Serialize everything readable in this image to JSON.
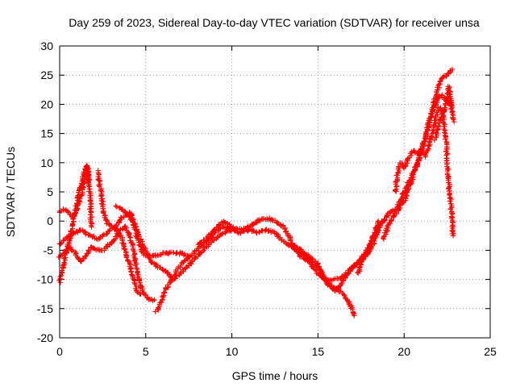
{
  "chart_data": {
    "type": "scatter",
    "title": "Day 259 of 2023, Sidereal Day-to-day VTEC variation (SDTVAR) for receiver unsa",
    "xlabel": "GPS time / hours",
    "ylabel": "SDTVAR / TECUs",
    "xlim": [
      0,
      25
    ],
    "ylim": [
      -20,
      30
    ],
    "xticks": [
      0,
      5,
      10,
      15,
      20,
      25
    ],
    "yticks": [
      -20,
      -15,
      -10,
      -5,
      0,
      5,
      10,
      15,
      20,
      25,
      30
    ],
    "grid": true,
    "marker": "+",
    "color": "#ff0000",
    "series": [
      {
        "name": "arc-1",
        "points": [
          [
            0.0,
            1.5
          ],
          [
            0.2,
            2.0
          ],
          [
            0.5,
            1.5
          ],
          [
            0.8,
            0.5
          ],
          [
            1.0,
            2.0
          ],
          [
            1.3,
            5.0
          ],
          [
            1.5,
            7.5
          ],
          [
            1.6,
            9.5
          ],
          [
            1.7,
            8.0
          ],
          [
            1.75,
            5.0
          ],
          [
            1.8,
            2.0
          ],
          [
            1.85,
            -1.0
          ]
        ]
      },
      {
        "name": "arc-2",
        "points": [
          [
            0.0,
            -10.5
          ],
          [
            0.2,
            -8.0
          ],
          [
            0.4,
            -5.0
          ],
          [
            0.6,
            -3.0
          ],
          [
            0.8,
            0.0
          ],
          [
            1.0,
            3.0
          ],
          [
            1.2,
            5.5
          ],
          [
            1.4,
            8.0
          ],
          [
            1.6,
            9.5
          ],
          [
            1.7,
            6.0
          ]
        ]
      },
      {
        "name": "arc-3",
        "points": [
          [
            0.0,
            -6.0
          ],
          [
            0.3,
            -5.5
          ],
          [
            0.6,
            -4.5
          ],
          [
            0.9,
            -5.5
          ],
          [
            1.2,
            -7.0
          ],
          [
            1.5,
            -6.0
          ],
          [
            1.8,
            -4.5
          ],
          [
            2.2,
            -5.0
          ],
          [
            2.5,
            -5.0
          ],
          [
            2.9,
            -4.0
          ],
          [
            3.2,
            -3.0
          ],
          [
            3.5,
            -1.5
          ],
          [
            3.8,
            -1.0
          ],
          [
            4.0,
            -2.0
          ],
          [
            4.3,
            -5.0
          ],
          [
            4.5,
            -9.0
          ],
          [
            4.8,
            -12.0
          ],
          [
            5.2,
            -13.5
          ],
          [
            5.5,
            -13.5
          ]
        ]
      },
      {
        "name": "arc-4",
        "points": [
          [
            0.0,
            -4.0
          ],
          [
            0.3,
            -3.0
          ],
          [
            0.6,
            -2.5
          ],
          [
            0.9,
            -2.0
          ],
          [
            1.2,
            -1.5
          ],
          [
            1.5,
            -2.0
          ],
          [
            1.8,
            -2.5
          ],
          [
            2.2,
            -3.0
          ],
          [
            2.5,
            -2.5
          ],
          [
            2.8,
            -2.0
          ],
          [
            3.2,
            -1.0
          ],
          [
            3.6,
            0.5
          ],
          [
            3.9,
            1.2
          ],
          [
            4.1,
            1.5
          ],
          [
            4.3,
            0.0
          ],
          [
            4.5,
            -3.0
          ],
          [
            4.8,
            -5.5
          ],
          [
            5.1,
            -6.0
          ],
          [
            5.5,
            -6.0
          ],
          [
            6.0,
            -5.5
          ],
          [
            6.5,
            -5.5
          ],
          [
            7.0,
            -5.5
          ],
          [
            7.5,
            -6.0
          ]
        ]
      },
      {
        "name": "arc-5",
        "points": [
          [
            2.2,
            8.5
          ],
          [
            2.4,
            5.0
          ],
          [
            2.6,
            1.0
          ],
          [
            2.8,
            -0.5
          ],
          [
            3.1,
            -1.0
          ],
          [
            3.3,
            -1.5
          ],
          [
            3.6,
            -3.0
          ],
          [
            3.9,
            -6.0
          ],
          [
            4.2,
            -9.0
          ],
          [
            4.5,
            -12.0
          ],
          [
            4.7,
            -12.5
          ]
        ]
      },
      {
        "name": "arc-6",
        "points": [
          [
            3.3,
            2.5
          ],
          [
            3.6,
            2.0
          ],
          [
            4.0,
            1.0
          ],
          [
            4.3,
            -0.5
          ],
          [
            4.6,
            -2.5
          ],
          [
            5.0,
            -5.0
          ],
          [
            5.3,
            -7.0
          ],
          [
            5.8,
            -8.0
          ],
          [
            6.3,
            -9.0
          ],
          [
            6.6,
            -10.0
          ],
          [
            7.0,
            -9.0
          ],
          [
            7.5,
            -7.5
          ],
          [
            8.0,
            -6.0
          ],
          [
            8.5,
            -4.5
          ],
          [
            9.0,
            -3.0
          ],
          [
            9.5,
            -2.0
          ],
          [
            10.0,
            -1.5
          ]
        ]
      },
      {
        "name": "arc-7",
        "points": [
          [
            5.6,
            -15.5
          ],
          [
            5.8,
            -14.5
          ],
          [
            6.0,
            -13.0
          ],
          [
            6.2,
            -11.5
          ],
          [
            6.5,
            -10.0
          ],
          [
            6.8,
            -8.5
          ],
          [
            7.2,
            -7.0
          ],
          [
            7.6,
            -6.0
          ],
          [
            8.0,
            -5.0
          ],
          [
            8.5,
            -3.5
          ],
          [
            9.0,
            -2.0
          ],
          [
            9.5,
            -1.0
          ],
          [
            10.0,
            -1.5
          ],
          [
            10.5,
            -2.0
          ],
          [
            11.0,
            -1.5
          ],
          [
            11.5,
            -2.0
          ],
          [
            12.0,
            -1.5
          ],
          [
            12.5,
            -2.0
          ],
          [
            13.0,
            -3.5
          ],
          [
            13.5,
            -4.5
          ],
          [
            14.0,
            -5.5
          ],
          [
            14.5,
            -6.5
          ],
          [
            15.0,
            -8.0
          ],
          [
            15.5,
            -10.5
          ],
          [
            16.0,
            -11.5
          ],
          [
            16.5,
            -12.5
          ],
          [
            17.0,
            -15.0
          ],
          [
            17.1,
            -16.2
          ]
        ]
      },
      {
        "name": "arc-8",
        "points": [
          [
            8.0,
            -4.0
          ],
          [
            8.5,
            -3.0
          ],
          [
            9.0,
            -1.5
          ],
          [
            9.5,
            0.0
          ],
          [
            10.0,
            -1.0
          ],
          [
            10.5,
            -1.5
          ],
          [
            11.0,
            -1.0
          ],
          [
            11.5,
            0.0
          ],
          [
            12.0,
            0.5
          ],
          [
            12.5,
            0.0
          ],
          [
            13.0,
            -1.0
          ],
          [
            13.3,
            -2.5
          ],
          [
            13.6,
            -4.5
          ],
          [
            14.0,
            -6.0
          ],
          [
            14.5,
            -7.0
          ],
          [
            15.0,
            -9.0
          ],
          [
            15.5,
            -10.0
          ],
          [
            16.0,
            -10.0
          ],
          [
            16.5,
            -9.5
          ],
          [
            17.0,
            -8.0
          ],
          [
            17.5,
            -6.5
          ],
          [
            18.0,
            -4.5
          ],
          [
            18.3,
            -2.0
          ],
          [
            18.5,
            0.0
          ]
        ]
      },
      {
        "name": "arc-9",
        "points": [
          [
            13.5,
            -4.0
          ],
          [
            14.0,
            -5.0
          ],
          [
            14.5,
            -6.0
          ],
          [
            15.0,
            -7.5
          ],
          [
            15.3,
            -9.5
          ],
          [
            15.6,
            -11.0
          ],
          [
            16.0,
            -12.0
          ],
          [
            16.3,
            -11.0
          ],
          [
            16.6,
            -9.5
          ],
          [
            17.0,
            -8.0
          ],
          [
            17.3,
            -7.0
          ],
          [
            17.7,
            -6.0
          ],
          [
            18.0,
            -5.0
          ],
          [
            18.3,
            -3.5
          ],
          [
            18.5,
            -1.5
          ],
          [
            18.7,
            0.0
          ]
        ]
      },
      {
        "name": "arc-10",
        "points": [
          [
            17.3,
            -9.0
          ],
          [
            17.5,
            -7.5
          ],
          [
            17.7,
            -6.0
          ],
          [
            18.0,
            -4.0
          ],
          [
            18.3,
            -2.5
          ],
          [
            18.6,
            -1.0
          ],
          [
            18.9,
            0.5
          ],
          [
            19.2,
            1.5
          ],
          [
            19.5,
            2.0
          ],
          [
            19.8,
            3.5
          ],
          [
            20.0,
            5.0
          ],
          [
            20.2,
            6.0
          ],
          [
            20.5,
            8.5
          ],
          [
            20.8,
            10.0
          ],
          [
            21.0,
            12.0
          ],
          [
            21.2,
            13.5
          ],
          [
            21.4,
            16.0
          ],
          [
            21.6,
            18.5
          ],
          [
            21.8,
            21.0
          ],
          [
            22.0,
            23.0
          ],
          [
            22.2,
            24.5
          ],
          [
            22.5,
            25.0
          ],
          [
            22.8,
            26.0
          ]
        ]
      },
      {
        "name": "arc-11",
        "points": [
          [
            18.8,
            -3.0
          ],
          [
            19.0,
            -1.5
          ],
          [
            19.2,
            0.0
          ],
          [
            19.4,
            1.0
          ],
          [
            19.7,
            2.0
          ],
          [
            20.0,
            3.5
          ],
          [
            20.2,
            5.0
          ],
          [
            20.5,
            7.5
          ],
          [
            20.8,
            10.0
          ],
          [
            21.0,
            12.0
          ],
          [
            21.2,
            14.0
          ],
          [
            21.4,
            16.5
          ],
          [
            21.6,
            18.5
          ],
          [
            21.8,
            20.0
          ],
          [
            22.0,
            21.0
          ],
          [
            22.2,
            21.5
          ],
          [
            22.5,
            20.5
          ],
          [
            22.8,
            19.5
          ]
        ]
      },
      {
        "name": "arc-12",
        "points": [
          [
            19.5,
            5.0
          ],
          [
            19.6,
            8.0
          ],
          [
            19.8,
            10.0
          ],
          [
            20.0,
            9.0
          ],
          [
            20.2,
            10.5
          ],
          [
            20.5,
            12.0
          ],
          [
            20.8,
            11.5
          ],
          [
            21.0,
            12.5
          ],
          [
            21.2,
            11.0
          ],
          [
            21.5,
            13.5
          ],
          [
            21.8,
            17.0
          ],
          [
            22.0,
            19.5
          ],
          [
            22.2,
            19.0
          ],
          [
            22.4,
            15.0
          ],
          [
            22.6,
            7.0
          ],
          [
            22.8,
            0.0
          ],
          [
            22.85,
            -2.5
          ]
        ]
      },
      {
        "name": "arc-13",
        "points": [
          [
            21.8,
            14.0
          ],
          [
            22.0,
            16.5
          ],
          [
            22.2,
            18.0
          ],
          [
            22.4,
            19.5
          ],
          [
            22.5,
            21.0
          ],
          [
            22.6,
            23.0
          ],
          [
            22.7,
            21.0
          ],
          [
            22.8,
            18.5
          ],
          [
            22.9,
            17.0
          ]
        ]
      }
    ]
  }
}
